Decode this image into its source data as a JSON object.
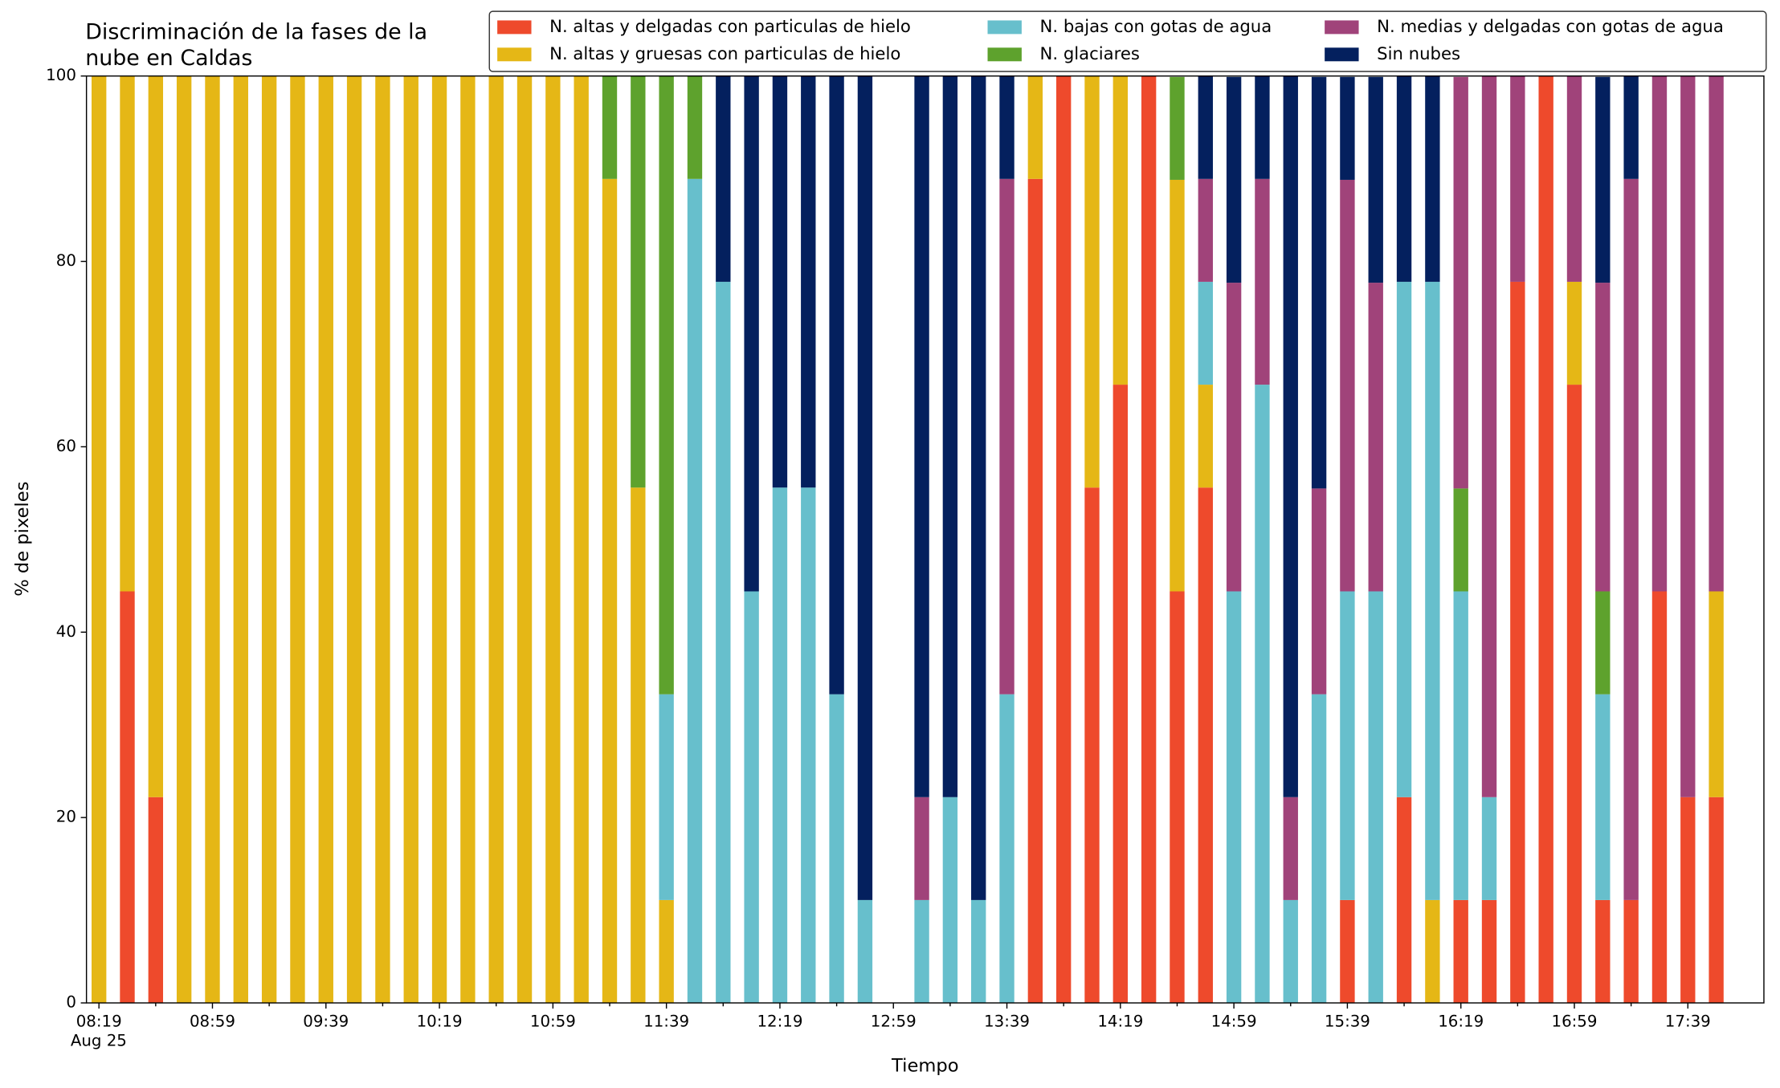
{
  "chart_data": {
    "type": "stacked_bar",
    "title": [
      "Discriminación de la fases de la",
      "nube en Caldas"
    ],
    "x_label": "Tiempo",
    "y_label": "% de pixeles",
    "x_date_label": "Aug 25",
    "categories": [
      "08:19",
      null,
      null,
      null,
      "08:59",
      null,
      null,
      null,
      "09:39",
      null,
      null,
      null,
      "10:19",
      null,
      null,
      null,
      "10:59",
      null,
      null,
      null,
      "11:39",
      null,
      null,
      null,
      "12:19",
      null,
      null,
      null,
      "12:59",
      null,
      null,
      null,
      "13:39",
      null,
      null,
      null,
      "14:19",
      null,
      null,
      null,
      "14:59",
      null,
      null,
      null,
      "15:39",
      null,
      null,
      null,
      "16:19",
      null,
      null,
      null,
      "16:59",
      null,
      null,
      null,
      "17:39",
      null
    ],
    "ylim": [
      0,
      100
    ],
    "yticks": [
      0,
      20,
      40,
      60,
      80,
      100
    ],
    "legend": "top-right",
    "series": [
      {
        "name": "N. altas y delgadas con particulas de hielo",
        "color": "#ee4a2c",
        "values": [
          0,
          44.4,
          22.2,
          0,
          0,
          0,
          0,
          0,
          0,
          0,
          0,
          0,
          0,
          0,
          0,
          0,
          0,
          0,
          0,
          0,
          0,
          0,
          0,
          0,
          0,
          0,
          0,
          0,
          0,
          0,
          0,
          0,
          0,
          88.9,
          100,
          55.6,
          66.7,
          100,
          44.4,
          55.6,
          0,
          0,
          0,
          0,
          11.1,
          0,
          22.2,
          0,
          11.1,
          11.1,
          77.8,
          100,
          66.7,
          11.1,
          11.1,
          44.4,
          22.2,
          22.2
        ]
      },
      {
        "name": "N. altas y gruesas con particulas de hielo",
        "color": "#e5b716",
        "values": [
          100,
          55.6,
          77.8,
          100,
          100,
          100,
          100,
          100,
          100,
          100,
          100,
          100,
          100,
          100,
          100,
          100,
          100,
          100,
          88.9,
          55.6,
          11.1,
          0,
          0,
          0,
          0,
          0,
          0,
          0,
          0,
          0,
          0,
          0,
          0,
          11.1,
          0,
          44.4,
          33.3,
          0,
          44.4,
          11.1,
          0,
          0,
          0,
          0,
          0,
          0,
          0,
          11.1,
          0,
          0,
          0,
          0,
          11.1,
          0,
          0,
          0,
          0,
          22.2
        ]
      },
      {
        "name": "N. bajas con gotas de agua",
        "color": "#67bfcc",
        "values": [
          0,
          0,
          0,
          0,
          0,
          0,
          0,
          0,
          0,
          0,
          0,
          0,
          0,
          0,
          0,
          0,
          0,
          0,
          0,
          0,
          22.2,
          88.9,
          77.8,
          44.4,
          55.6,
          55.6,
          33.3,
          11.1,
          0,
          11.1,
          22.2,
          11.1,
          33.3,
          0,
          0,
          0,
          0,
          0,
          0,
          11.1,
          44.4,
          66.7,
          11.1,
          33.3,
          33.3,
          44.4,
          55.6,
          66.7,
          33.3,
          11.1,
          0,
          0,
          0,
          22.2,
          0,
          0,
          0,
          0
        ]
      },
      {
        "name": "N. glaciares",
        "color": "#5ea22d",
        "values": [
          0,
          0,
          0,
          0,
          0,
          0,
          0,
          0,
          0,
          0,
          0,
          0,
          0,
          0,
          0,
          0,
          0,
          0,
          11.1,
          44.4,
          66.7,
          11.1,
          0,
          0,
          0,
          0,
          0,
          0,
          0,
          0,
          0,
          0,
          0,
          0,
          0,
          0,
          0,
          0,
          11.1,
          0,
          0,
          0,
          0,
          0,
          0,
          0,
          0,
          0,
          11.1,
          0,
          0,
          0,
          0,
          11.1,
          0,
          0,
          0,
          0
        ]
      },
      {
        "name": "N. medias y delgadas con gotas de agua",
        "color": "#a0437a",
        "values": [
          0,
          0,
          0,
          0,
          0,
          0,
          0,
          0,
          0,
          0,
          0,
          0,
          0,
          0,
          0,
          0,
          0,
          0,
          0,
          0,
          0,
          0,
          0,
          0,
          0,
          0,
          0,
          0,
          0,
          11.1,
          0,
          0,
          55.6,
          0,
          0,
          0,
          0,
          0,
          0,
          11.1,
          33.3,
          22.2,
          11.1,
          22.2,
          44.4,
          33.3,
          0,
          0,
          44.4,
          77.8,
          22.2,
          0,
          22.2,
          33.3,
          77.8,
          55.6,
          77.8,
          55.6
        ]
      },
      {
        "name": "Sin nubes",
        "color": "#04205e",
        "values": [
          0,
          0,
          0,
          0,
          0,
          0,
          0,
          0,
          0,
          0,
          0,
          0,
          0,
          0,
          0,
          0,
          0,
          0,
          0,
          0,
          0,
          0,
          22.2,
          55.6,
          44.4,
          44.4,
          66.7,
          88.9,
          0,
          77.8,
          77.8,
          88.9,
          11.1,
          0,
          0,
          0,
          0,
          0,
          0,
          11.1,
          22.2,
          11.1,
          77.8,
          44.4,
          11.1,
          22.2,
          22.2,
          22.2,
          0,
          0,
          0,
          0,
          0,
          22.2,
          11.1,
          0,
          0,
          0
        ]
      }
    ]
  }
}
